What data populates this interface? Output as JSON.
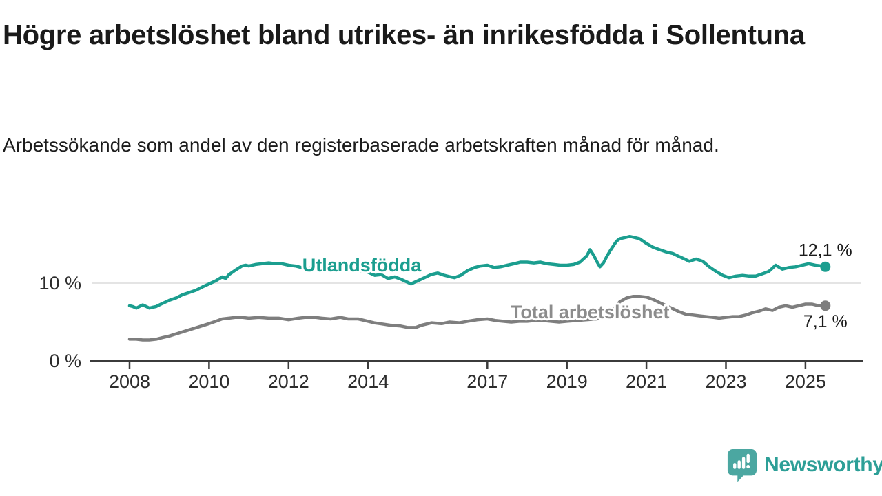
{
  "header": {
    "title": "Högre arbetslöshet bland utrikes- än inrikesfödda i Sollentuna",
    "subtitle": "Arbetssökande som andel av den registerbaserade arbetskraften månad för månad."
  },
  "footer": {
    "brand": "Newsworthy",
    "logo_icon": "speech-bubble-bar-chart-icon",
    "brand_color": "#2d9f97",
    "logo_bubble_color": "#4ba7a1"
  },
  "chart_data": {
    "type": "line",
    "x_unit": "year (monthly data)",
    "xlim": [
      2007.8,
      2026.3
    ],
    "ylim": [
      0,
      18
    ],
    "grid": "horizontal gridline at 10 % only",
    "legend_position": "inline labels on lines",
    "colors": {
      "axis": "#3b3b3b",
      "gridline": "#dcdcdc",
      "tick_label": "#2d2d2d",
      "end_value_label": "#1a1a1a"
    },
    "yticks": [
      {
        "value": 0,
        "label": "0 %"
      },
      {
        "value": 10,
        "label": "10 %"
      }
    ],
    "xticks": [
      2008,
      2010,
      2012,
      2014,
      2017,
      2019,
      2021,
      2023,
      2025
    ],
    "series": [
      {
        "id": "utlandsfodda",
        "name": "Utlandsfödda",
        "color": "#1b9e8f",
        "end_label": "12,1 %",
        "end_label_placement": "above",
        "label_anchor": {
          "year": 2013.84,
          "value": 12.3
        },
        "points": [
          [
            2008.0,
            7.1
          ],
          [
            2008.08,
            7.0
          ],
          [
            2008.17,
            6.8
          ],
          [
            2008.25,
            7.0
          ],
          [
            2008.33,
            7.2
          ],
          [
            2008.42,
            7.0
          ],
          [
            2008.5,
            6.8
          ],
          [
            2008.58,
            6.9
          ],
          [
            2008.67,
            7.0
          ],
          [
            2008.75,
            7.2
          ],
          [
            2008.83,
            7.4
          ],
          [
            2008.92,
            7.6
          ],
          [
            2009.0,
            7.8
          ],
          [
            2009.17,
            8.1
          ],
          [
            2009.33,
            8.5
          ],
          [
            2009.5,
            8.8
          ],
          [
            2009.67,
            9.1
          ],
          [
            2009.83,
            9.5
          ],
          [
            2010.0,
            9.9
          ],
          [
            2010.17,
            10.3
          ],
          [
            2010.33,
            10.8
          ],
          [
            2010.42,
            10.6
          ],
          [
            2010.5,
            11.1
          ],
          [
            2010.67,
            11.7
          ],
          [
            2010.83,
            12.2
          ],
          [
            2010.92,
            12.3
          ],
          [
            2011.0,
            12.2
          ],
          [
            2011.17,
            12.4
          ],
          [
            2011.33,
            12.5
          ],
          [
            2011.5,
            12.6
          ],
          [
            2011.67,
            12.5
          ],
          [
            2011.83,
            12.5
          ],
          [
            2012.0,
            12.3
          ],
          [
            2012.17,
            12.2
          ],
          [
            2012.33,
            12.0
          ],
          [
            2012.5,
            11.9
          ],
          [
            2012.67,
            12.1
          ],
          [
            2012.83,
            12.0
          ],
          [
            2013.0,
            11.9
          ],
          [
            2013.25,
            11.9
          ],
          [
            2013.5,
            11.8
          ],
          [
            2013.75,
            11.6
          ],
          [
            2014.0,
            11.4
          ],
          [
            2014.17,
            11.0
          ],
          [
            2014.33,
            11.1
          ],
          [
            2014.5,
            10.6
          ],
          [
            2014.67,
            10.8
          ],
          [
            2014.83,
            10.5
          ],
          [
            2015.0,
            10.1
          ],
          [
            2015.08,
            9.9
          ],
          [
            2015.25,
            10.3
          ],
          [
            2015.42,
            10.7
          ],
          [
            2015.58,
            11.1
          ],
          [
            2015.75,
            11.3
          ],
          [
            2015.92,
            11.0
          ],
          [
            2016.08,
            10.8
          ],
          [
            2016.17,
            10.7
          ],
          [
            2016.33,
            11.0
          ],
          [
            2016.5,
            11.6
          ],
          [
            2016.67,
            12.0
          ],
          [
            2016.83,
            12.2
          ],
          [
            2017.0,
            12.3
          ],
          [
            2017.17,
            12.0
          ],
          [
            2017.33,
            12.1
          ],
          [
            2017.5,
            12.3
          ],
          [
            2017.67,
            12.5
          ],
          [
            2017.83,
            12.7
          ],
          [
            2018.0,
            12.7
          ],
          [
            2018.17,
            12.6
          ],
          [
            2018.33,
            12.7
          ],
          [
            2018.5,
            12.5
          ],
          [
            2018.67,
            12.4
          ],
          [
            2018.83,
            12.3
          ],
          [
            2019.0,
            12.3
          ],
          [
            2019.17,
            12.4
          ],
          [
            2019.33,
            12.7
          ],
          [
            2019.5,
            13.5
          ],
          [
            2019.58,
            14.3
          ],
          [
            2019.67,
            13.6
          ],
          [
            2019.75,
            12.8
          ],
          [
            2019.83,
            12.1
          ],
          [
            2019.92,
            12.6
          ],
          [
            2020.0,
            13.4
          ],
          [
            2020.08,
            14.1
          ],
          [
            2020.17,
            14.8
          ],
          [
            2020.25,
            15.4
          ],
          [
            2020.33,
            15.7
          ],
          [
            2020.5,
            15.9
          ],
          [
            2020.58,
            16.0
          ],
          [
            2020.67,
            15.9
          ],
          [
            2020.83,
            15.7
          ],
          [
            2021.0,
            15.1
          ],
          [
            2021.17,
            14.6
          ],
          [
            2021.33,
            14.3
          ],
          [
            2021.5,
            14.0
          ],
          [
            2021.67,
            13.8
          ],
          [
            2021.83,
            13.4
          ],
          [
            2022.0,
            13.0
          ],
          [
            2022.08,
            12.8
          ],
          [
            2022.25,
            13.1
          ],
          [
            2022.42,
            12.8
          ],
          [
            2022.58,
            12.1
          ],
          [
            2022.75,
            11.5
          ],
          [
            2022.92,
            11.0
          ],
          [
            2023.08,
            10.7
          ],
          [
            2023.25,
            10.9
          ],
          [
            2023.42,
            11.0
          ],
          [
            2023.58,
            10.9
          ],
          [
            2023.75,
            10.9
          ],
          [
            2023.92,
            11.2
          ],
          [
            2024.08,
            11.5
          ],
          [
            2024.25,
            12.3
          ],
          [
            2024.42,
            11.8
          ],
          [
            2024.58,
            12.0
          ],
          [
            2024.75,
            12.1
          ],
          [
            2024.92,
            12.3
          ],
          [
            2025.08,
            12.5
          ],
          [
            2025.25,
            12.3
          ],
          [
            2025.42,
            12.2
          ],
          [
            2025.5,
            12.1
          ]
        ]
      },
      {
        "id": "total-arbetsloshet",
        "name": "Total arbetslöshet",
        "color": "#7e7e7e",
        "label_color": "#8c8c8c",
        "end_label": "7,1 %",
        "end_label_placement": "below",
        "label_anchor": {
          "year": 2019.58,
          "value": 6.28
        },
        "points": [
          [
            2008.0,
            2.8
          ],
          [
            2008.17,
            2.8
          ],
          [
            2008.33,
            2.7
          ],
          [
            2008.5,
            2.7
          ],
          [
            2008.67,
            2.8
          ],
          [
            2008.83,
            3.0
          ],
          [
            2009.0,
            3.2
          ],
          [
            2009.25,
            3.6
          ],
          [
            2009.5,
            4.0
          ],
          [
            2009.75,
            4.4
          ],
          [
            2010.0,
            4.8
          ],
          [
            2010.17,
            5.1
          ],
          [
            2010.33,
            5.4
          ],
          [
            2010.5,
            5.5
          ],
          [
            2010.67,
            5.6
          ],
          [
            2010.83,
            5.6
          ],
          [
            2011.0,
            5.5
          ],
          [
            2011.25,
            5.6
          ],
          [
            2011.5,
            5.5
          ],
          [
            2011.75,
            5.5
          ],
          [
            2012.0,
            5.3
          ],
          [
            2012.25,
            5.5
          ],
          [
            2012.42,
            5.6
          ],
          [
            2012.67,
            5.6
          ],
          [
            2012.83,
            5.5
          ],
          [
            2013.06,
            5.4
          ],
          [
            2013.3,
            5.6
          ],
          [
            2013.5,
            5.4
          ],
          [
            2013.75,
            5.4
          ],
          [
            2014.0,
            5.1
          ],
          [
            2014.15,
            4.9
          ],
          [
            2014.3,
            4.8
          ],
          [
            2014.55,
            4.6
          ],
          [
            2014.8,
            4.5
          ],
          [
            2015.0,
            4.3
          ],
          [
            2015.2,
            4.3
          ],
          [
            2015.35,
            4.6
          ],
          [
            2015.6,
            4.9
          ],
          [
            2015.85,
            4.8
          ],
          [
            2016.05,
            5.0
          ],
          [
            2016.3,
            4.9
          ],
          [
            2016.5,
            5.1
          ],
          [
            2016.75,
            5.3
          ],
          [
            2017.0,
            5.4
          ],
          [
            2017.2,
            5.2
          ],
          [
            2017.4,
            5.1
          ],
          [
            2017.6,
            5.0
          ],
          [
            2017.8,
            5.1
          ],
          [
            2018.0,
            5.1
          ],
          [
            2018.2,
            5.2
          ],
          [
            2018.4,
            5.2
          ],
          [
            2018.6,
            5.1
          ],
          [
            2018.8,
            5.0
          ],
          [
            2019.0,
            5.1
          ],
          [
            2019.25,
            5.2
          ],
          [
            2019.5,
            5.3
          ],
          [
            2019.75,
            5.4
          ],
          [
            2020.0,
            5.7
          ],
          [
            2020.17,
            6.6
          ],
          [
            2020.33,
            7.6
          ],
          [
            2020.5,
            8.1
          ],
          [
            2020.67,
            8.3
          ],
          [
            2020.83,
            8.3
          ],
          [
            2021.0,
            8.2
          ],
          [
            2021.17,
            7.9
          ],
          [
            2021.33,
            7.5
          ],
          [
            2021.5,
            7.1
          ],
          [
            2021.67,
            6.7
          ],
          [
            2021.83,
            6.3
          ],
          [
            2022.0,
            6.0
          ],
          [
            2022.17,
            5.9
          ],
          [
            2022.33,
            5.8
          ],
          [
            2022.5,
            5.7
          ],
          [
            2022.67,
            5.6
          ],
          [
            2022.83,
            5.5
          ],
          [
            2023.0,
            5.6
          ],
          [
            2023.17,
            5.7
          ],
          [
            2023.33,
            5.7
          ],
          [
            2023.5,
            5.9
          ],
          [
            2023.67,
            6.2
          ],
          [
            2023.83,
            6.4
          ],
          [
            2024.0,
            6.7
          ],
          [
            2024.17,
            6.5
          ],
          [
            2024.33,
            6.9
          ],
          [
            2024.5,
            7.1
          ],
          [
            2024.67,
            6.9
          ],
          [
            2024.83,
            7.1
          ],
          [
            2025.0,
            7.3
          ],
          [
            2025.17,
            7.3
          ],
          [
            2025.33,
            7.1
          ],
          [
            2025.5,
            7.1
          ]
        ]
      }
    ]
  }
}
